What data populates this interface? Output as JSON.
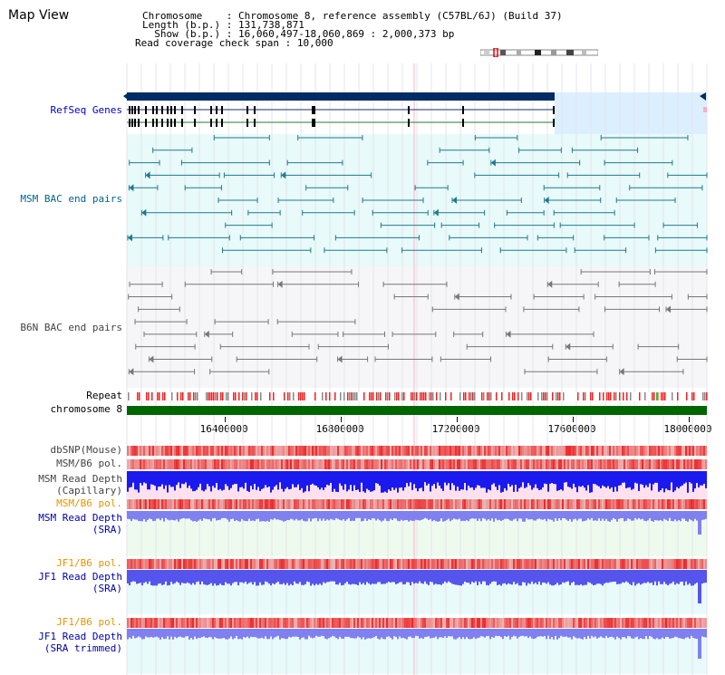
{
  "title": "Map View",
  "info": {
    "chromosome_key": "Chromosome",
    "chromosome_value": "Chromosome 8, reference assembly (C57BL/6J) (Build 37)",
    "length_key": "Length (b.p.)",
    "length_value": "131,738,871",
    "show_key": "Show (b.p.)",
    "show_value": "16,060,497-18,060,869 : 2,000,373 bp",
    "coverage_key": "Read coverage check span",
    "coverage_value": "10,000"
  },
  "view": {
    "start_bp": 16060497,
    "end_bp": 18060869
  },
  "ticks": [
    "16400000",
    "16800000",
    "17200000",
    "17600000",
    "18000000"
  ],
  "tick_values": [
    16400000,
    16800000,
    17200000,
    17600000,
    18000000
  ],
  "tracks": {
    "refseq": "RefSeq Genes",
    "msm_bac": "MSM BAC end pairs",
    "b6n_bac": "B6N BAC end pairs",
    "repeat": "Repeat",
    "chrom": "chromosome 8",
    "dbsnp": "dbSNP(Mouse)",
    "msm_pol": "MSM/B6 pol.",
    "msm_depth_cap_1": "MSM Read Depth",
    "msm_depth_cap_2": "(Capillary)",
    "msm_pol_2": "MSM/B6 pol.",
    "msm_depth_sra_1": "MSM Read Depth",
    "msm_depth_sra_2": "(SRA)",
    "jf1_pol": "JF1/B6 pol.",
    "jf1_depth_1": "JF1 Read Depth",
    "jf1_depth_2": "(SRA)",
    "jf1_pol_2": "JF1/B6 pol.",
    "jf1_trim_1": "JF1 Read Depth",
    "jf1_trim_2": "(SRA trimmed)"
  },
  "colors": {
    "refseq_bar": "#002b66",
    "refseq_bg": "#dcefff",
    "msm_bac": "#1f7a8c",
    "msm_bg": "#e8fafa",
    "b6n_bac": "#777777",
    "repeat_red": "#ee2222",
    "repeat_gray": "#888888",
    "chrom_green": "#006600",
    "snp_red": "#ee3333",
    "depth_blue": "#1a1aee",
    "depth_light": "#8080f0",
    "highlight_line": "#ffb0c8"
  }
}
